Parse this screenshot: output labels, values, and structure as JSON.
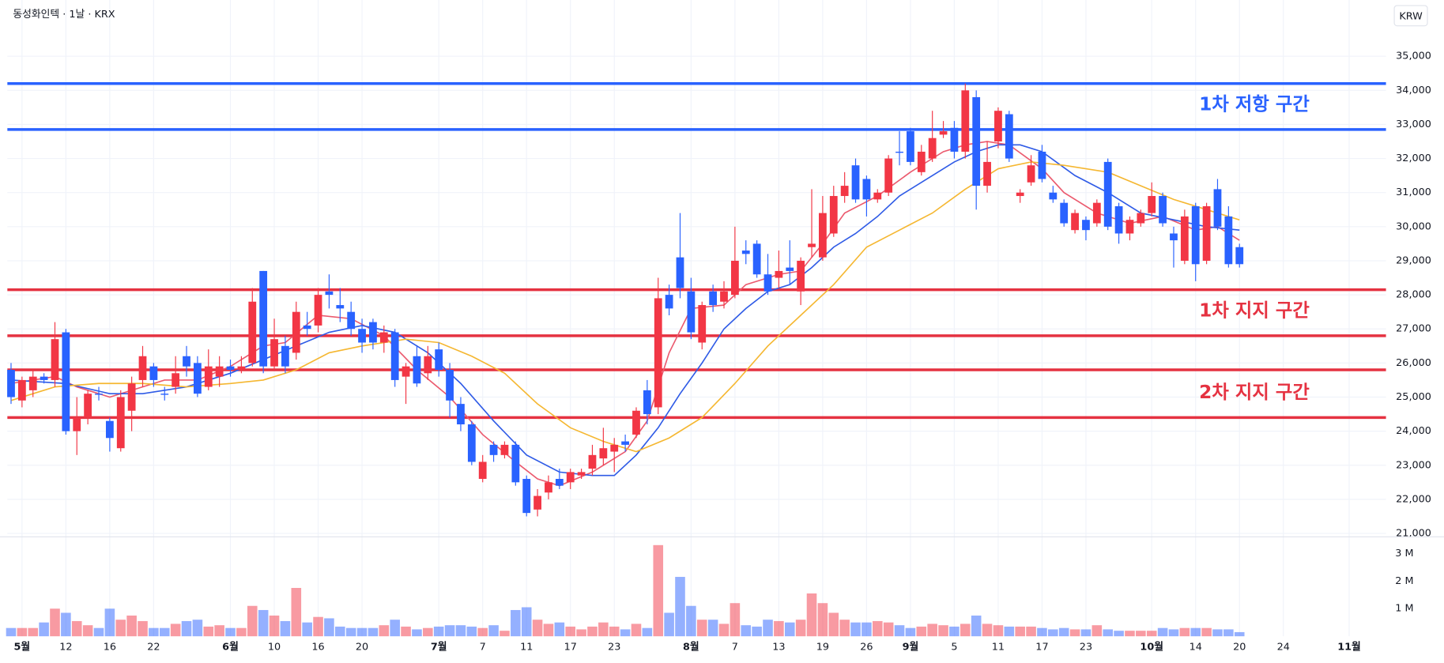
{
  "chart_data": {
    "type": "candlestick",
    "title": "동성화인텍 · 1날 · KRX",
    "currency": "KRW",
    "up_color": "#f23645",
    "down_color": "#2962ff",
    "grid": true,
    "categories": [
      null,
      "5월",
      null,
      null,
      null,
      "12",
      null,
      null,
      null,
      "16",
      null,
      null,
      null,
      "22",
      null,
      null,
      null,
      null,
      null,
      null,
      "6월",
      null,
      null,
      null,
      "10",
      null,
      null,
      null,
      "16",
      null,
      null,
      null,
      "20",
      null,
      null,
      null,
      null,
      null,
      null,
      "7월",
      null,
      null,
      null,
      "7",
      null,
      null,
      null,
      "11",
      null,
      null,
      null,
      "17",
      null,
      null,
      null,
      "23",
      null,
      null,
      null,
      null,
      null,
      null,
      "8월",
      null,
      null,
      null,
      "7",
      null,
      null,
      null,
      "13",
      null,
      null,
      null,
      "19",
      null,
      null,
      null,
      "26",
      null,
      null,
      null,
      "9월",
      null,
      null,
      null,
      "5",
      null,
      null,
      null,
      "11",
      null,
      null,
      null,
      "17",
      null,
      null,
      null,
      "23",
      null,
      null,
      null,
      null,
      null,
      "10월",
      null,
      null,
      null,
      "14",
      null,
      null,
      null,
      "20",
      null,
      null,
      null,
      "24",
      null,
      null,
      null,
      null,
      null,
      "11월"
    ],
    "open": [
      25800,
      24900,
      25200,
      25600,
      25500,
      26900,
      24000,
      24400,
      25100,
      24300,
      23500,
      24600,
      25500,
      25900,
      25100,
      25300,
      26200,
      26000,
      25300,
      25600,
      25900,
      25800,
      26000,
      28700,
      25900,
      26500,
      26300,
      27100,
      27100,
      28100,
      27700,
      27500,
      27000,
      27200,
      26600,
      26900,
      25600,
      26200,
      25700,
      26400,
      25800,
      24800,
      24200,
      22600,
      23600,
      23300,
      23600,
      22600,
      21700,
      22200,
      22600,
      22500,
      22700,
      22900,
      23200,
      23400,
      23700,
      23900,
      25200,
      24700,
      28000,
      29100,
      28100,
      26600,
      28100,
      27800,
      28000,
      29300,
      29500,
      28600,
      28500,
      28800,
      28100,
      29400,
      29100,
      29800,
      30900,
      31800,
      31400,
      30800,
      31000,
      32200,
      32800,
      31600,
      32000,
      32700,
      32900,
      32200,
      33800,
      31200,
      32500,
      33300,
      30900,
      31300,
      32200,
      31000,
      30700,
      29900,
      30200,
      30100,
      31900,
      30600,
      29800,
      30100,
      30400,
      30900,
      29800,
      29000,
      30600,
      29000,
      31100,
      30300,
      29400,
      null,
      null,
      null,
      null,
      null,
      null,
      null,
      null,
      null,
      null
    ],
    "high": [
      26000,
      25600,
      25800,
      25700,
      27200,
      27000,
      25000,
      25200,
      25300,
      24400,
      25200,
      25600,
      26500,
      26000,
      25300,
      26200,
      26500,
      26200,
      26400,
      26200,
      26100,
      26200,
      28200,
      28700,
      27300,
      26800,
      27800,
      27500,
      28200,
      28600,
      28200,
      27800,
      27300,
      27300,
      27100,
      27000,
      26000,
      26500,
      26500,
      26600,
      26000,
      25000,
      24300,
      23300,
      23700,
      23700,
      23700,
      22700,
      22300,
      22700,
      22900,
      22900,
      22900,
      23600,
      24100,
      23800,
      23900,
      24700,
      25500,
      28500,
      28300,
      30400,
      28500,
      27800,
      28300,
      28400,
      30000,
      29600,
      29600,
      29200,
      29300,
      29600,
      29100,
      31100,
      30900,
      31200,
      31600,
      32000,
      31500,
      31100,
      32100,
      32800,
      32900,
      32400,
      33400,
      33100,
      33100,
      34200,
      34000,
      32500,
      33500,
      33400,
      31100,
      32100,
      32400,
      31200,
      30800,
      30500,
      30300,
      30800,
      32000,
      30700,
      30300,
      30500,
      31300,
      31000,
      30000,
      30500,
      30700,
      30700,
      31400,
      30600,
      29500,
      null,
      null,
      null,
      null,
      null,
      null,
      null,
      null,
      null,
      null
    ],
    "low": [
      24800,
      24700,
      25000,
      25400,
      25300,
      23900,
      23300,
      24200,
      24900,
      23400,
      23400,
      24000,
      25300,
      25300,
      24900,
      25100,
      25600,
      25000,
      25200,
      25300,
      25600,
      25700,
      25900,
      25700,
      25800,
      25700,
      26100,
      26800,
      26900,
      27600,
      27200,
      26800,
      26300,
      26400,
      26300,
      25300,
      24800,
      25300,
      25500,
      25600,
      24400,
      24000,
      23000,
      22500,
      23100,
      23200,
      22400,
      21500,
      21500,
      22000,
      22300,
      22300,
      22600,
      22700,
      23000,
      22800,
      23400,
      23800,
      24200,
      24500,
      27400,
      27900,
      26700,
      26400,
      27500,
      27600,
      27900,
      28900,
      28500,
      28000,
      28200,
      28300,
      27700,
      29100,
      29000,
      29700,
      30700,
      30700,
      30300,
      30700,
      30900,
      31800,
      31800,
      31500,
      31900,
      32600,
      32000,
      32000,
      30500,
      31000,
      32300,
      31900,
      30700,
      31200,
      31300,
      30700,
      30000,
      29800,
      29600,
      30000,
      29900,
      29500,
      29600,
      30000,
      30300,
      30000,
      28800,
      28900,
      28400,
      28900,
      29900,
      28800,
      28800,
      null,
      null,
      null,
      null,
      null,
      null,
      null,
      null,
      null,
      null
    ],
    "close": [
      25000,
      25500,
      25600,
      25500,
      26700,
      24000,
      24400,
      25100,
      25100,
      23800,
      25000,
      25400,
      26200,
      25500,
      25100,
      25700,
      25900,
      25100,
      25900,
      25900,
      25800,
      25900,
      27800,
      25900,
      26700,
      25900,
      27500,
      27000,
      28000,
      28000,
      27600,
      27000,
      26600,
      26600,
      26900,
      25500,
      25900,
      25400,
      26200,
      25800,
      24900,
      24200,
      23100,
      23100,
      23300,
      23600,
      22500,
      21600,
      22100,
      22500,
      22400,
      22800,
      22800,
      23300,
      23500,
      23600,
      23600,
      24600,
      24500,
      27900,
      27600,
      28200,
      26900,
      27700,
      27700,
      28100,
      29000,
      29200,
      28600,
      28100,
      28700,
      28700,
      29000,
      29500,
      30400,
      30900,
      31200,
      30800,
      30800,
      31000,
      32000,
      32200,
      31900,
      32200,
      32600,
      32800,
      32200,
      34000,
      31200,
      31900,
      33400,
      32000,
      31000,
      31800,
      31400,
      30800,
      30100,
      30400,
      29900,
      30700,
      30000,
      29800,
      30200,
      30400,
      30900,
      30100,
      29600,
      30300,
      28900,
      30600,
      30000,
      28900,
      28900,
      null,
      null,
      null,
      null,
      null,
      null,
      null,
      null,
      null,
      null
    ],
    "volume": [
      300000,
      300000,
      300000,
      500000,
      1000000,
      850000,
      550000,
      400000,
      300000,
      1000000,
      600000,
      750000,
      550000,
      300000,
      300000,
      450000,
      550000,
      600000,
      350000,
      400000,
      300000,
      300000,
      1100000,
      950000,
      750000,
      550000,
      1750000,
      500000,
      700000,
      650000,
      350000,
      300000,
      300000,
      300000,
      400000,
      600000,
      350000,
      250000,
      300000,
      350000,
      400000,
      400000,
      350000,
      300000,
      400000,
      200000,
      950000,
      1050000,
      600000,
      450000,
      500000,
      350000,
      250000,
      350000,
      500000,
      350000,
      250000,
      450000,
      300000,
      3300000,
      850000,
      2150000,
      1100000,
      600000,
      600000,
      450000,
      1200000,
      400000,
      350000,
      600000,
      550000,
      500000,
      600000,
      1550000,
      1200000,
      850000,
      600000,
      500000,
      500000,
      550000,
      500000,
      400000,
      300000,
      350000,
      450000,
      400000,
      350000,
      450000,
      750000,
      450000,
      400000,
      350000,
      350000,
      350000,
      300000,
      250000,
      300000,
      250000,
      250000,
      400000,
      250000,
      200000,
      200000,
      200000,
      200000,
      300000,
      250000,
      300000,
      300000,
      300000,
      250000,
      250000,
      150000,
      null,
      null,
      null,
      null,
      null,
      null,
      null,
      null,
      null,
      null
    ],
    "ylim": [
      20900,
      36650
    ],
    "yticks": [
      {
        "value": 21000,
        "label": "21,000"
      },
      {
        "value": 22000,
        "label": "22,000"
      },
      {
        "value": 23000,
        "label": "23,000"
      },
      {
        "value": 24000,
        "label": "24,000"
      },
      {
        "value": 25000,
        "label": "25,000"
      },
      {
        "value": 26000,
        "label": "26,000"
      },
      {
        "value": 27000,
        "label": "27,000"
      },
      {
        "value": 28000,
        "label": "28,000"
      },
      {
        "value": 29000,
        "label": "29,000"
      },
      {
        "value": 30000,
        "label": "30,000"
      },
      {
        "value": 31000,
        "label": "31,000"
      },
      {
        "value": 32000,
        "label": "32,000"
      },
      {
        "value": 33000,
        "label": "33,000"
      },
      {
        "value": 34000,
        "label": "34,000"
      },
      {
        "value": 35000,
        "label": "35,000"
      }
    ],
    "volume_ylim": [
      0,
      3600000
    ],
    "volume_ticks": [
      {
        "value": 1000000,
        "label": "1 M"
      },
      {
        "value": 2000000,
        "label": "2 M"
      },
      {
        "value": 3000000,
        "label": "3 M"
      }
    ],
    "moving_averages": [
      {
        "color": "#eb5a6e",
        "x": [
          0,
          4,
          6,
          9,
          11,
          14,
          17,
          20,
          23,
          25,
          28,
          31,
          34,
          37,
          40,
          43,
          46,
          48,
          50,
          53,
          56,
          58,
          60,
          62,
          65,
          67,
          70,
          72,
          74,
          76,
          79,
          82,
          85,
          87,
          89,
          91,
          94,
          96,
          99,
          102,
          105,
          108,
          110,
          112
        ],
        "values": [
          25400,
          25600,
          25300,
          25000,
          25200,
          25500,
          25500,
          25900,
          26500,
          26600,
          27400,
          27300,
          26800,
          25800,
          25000,
          23900,
          23100,
          22600,
          22400,
          22800,
          23400,
          24300,
          26300,
          27600,
          27700,
          28300,
          28600,
          28700,
          29500,
          30400,
          30900,
          31600,
          32200,
          32400,
          32500,
          32400,
          31700,
          31000,
          30400,
          30100,
          30300,
          29900,
          30000,
          29600
        ]
      },
      {
        "color": "#2f5be6",
        "x": [
          0,
          5,
          9,
          12,
          16,
          20,
          23,
          26,
          29,
          32,
          35,
          38,
          41,
          44,
          47,
          50,
          53,
          55,
          57,
          59,
          61,
          63,
          65,
          67,
          69,
          71,
          73,
          75,
          77,
          79,
          81,
          84,
          86,
          88,
          90,
          92,
          94,
          97,
          100,
          103,
          106,
          109,
          112
        ],
        "values": [
          25500,
          25400,
          25100,
          25100,
          25300,
          25700,
          26100,
          26500,
          26900,
          27100,
          26900,
          26300,
          25400,
          24300,
          23300,
          22800,
          22700,
          22700,
          23300,
          24100,
          25100,
          26000,
          27000,
          27600,
          28100,
          28300,
          28800,
          29400,
          29800,
          30300,
          30900,
          31500,
          31900,
          32200,
          32400,
          32400,
          32200,
          31500,
          31000,
          30400,
          30200,
          30000,
          29900
        ]
      },
      {
        "color": "#f5b731",
        "x": [
          0,
          4,
          8,
          12,
          16,
          20,
          23,
          26,
          29,
          32,
          36,
          39,
          42,
          45,
          48,
          51,
          54,
          57,
          60,
          63,
          66,
          69,
          72,
          75,
          78,
          81,
          84,
          87,
          90,
          93,
          96,
          100,
          103,
          106,
          109,
          112
        ],
        "values": [
          24900,
          25300,
          25400,
          25400,
          25300,
          25400,
          25500,
          25800,
          26300,
          26500,
          26700,
          26600,
          26200,
          25700,
          24800,
          24100,
          23700,
          23400,
          23800,
          24400,
          25400,
          26500,
          27400,
          28300,
          29400,
          29900,
          30400,
          31100,
          31700,
          31900,
          31800,
          31600,
          31200,
          30800,
          30500,
          30200
        ]
      }
    ],
    "levels": [
      {
        "value": 34200,
        "color": "#2962ff"
      },
      {
        "value": 32850,
        "color": "#2962ff"
      },
      {
        "value": 28150,
        "color": "#e53241"
      },
      {
        "value": 26800,
        "color": "#e53241"
      },
      {
        "value": 25800,
        "color": "#e53241"
      },
      {
        "value": 24400,
        "color": "#e53241"
      }
    ],
    "annotations": [
      {
        "text": "1차 저항 구간",
        "color": "#2962ff"
      },
      {
        "text": "1차 지지 구간",
        "color": "#e53241"
      },
      {
        "text": "2차 지지 구간",
        "color": "#e53241"
      }
    ]
  }
}
